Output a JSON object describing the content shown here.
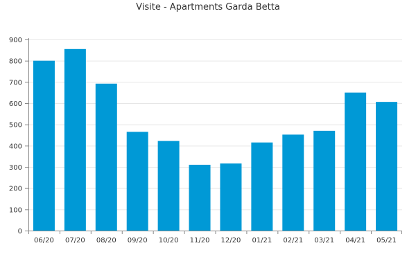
{
  "chart_data": {
    "type": "bar",
    "title": "Visite - Apartments Garda Betta",
    "xlabel": "",
    "ylabel": "",
    "categories": [
      "06/20",
      "07/20",
      "08/20",
      "09/20",
      "10/20",
      "11/20",
      "12/20",
      "01/21",
      "02/21",
      "03/21",
      "04/21",
      "05/21"
    ],
    "values": [
      800,
      855,
      692,
      465,
      422,
      310,
      316,
      415,
      452,
      470,
      650,
      606
    ],
    "ylim": [
      0,
      900
    ],
    "yticks": [
      0,
      100,
      200,
      300,
      400,
      500,
      600,
      700,
      800,
      900
    ],
    "grid": true,
    "bar_color": "#0099d6"
  }
}
